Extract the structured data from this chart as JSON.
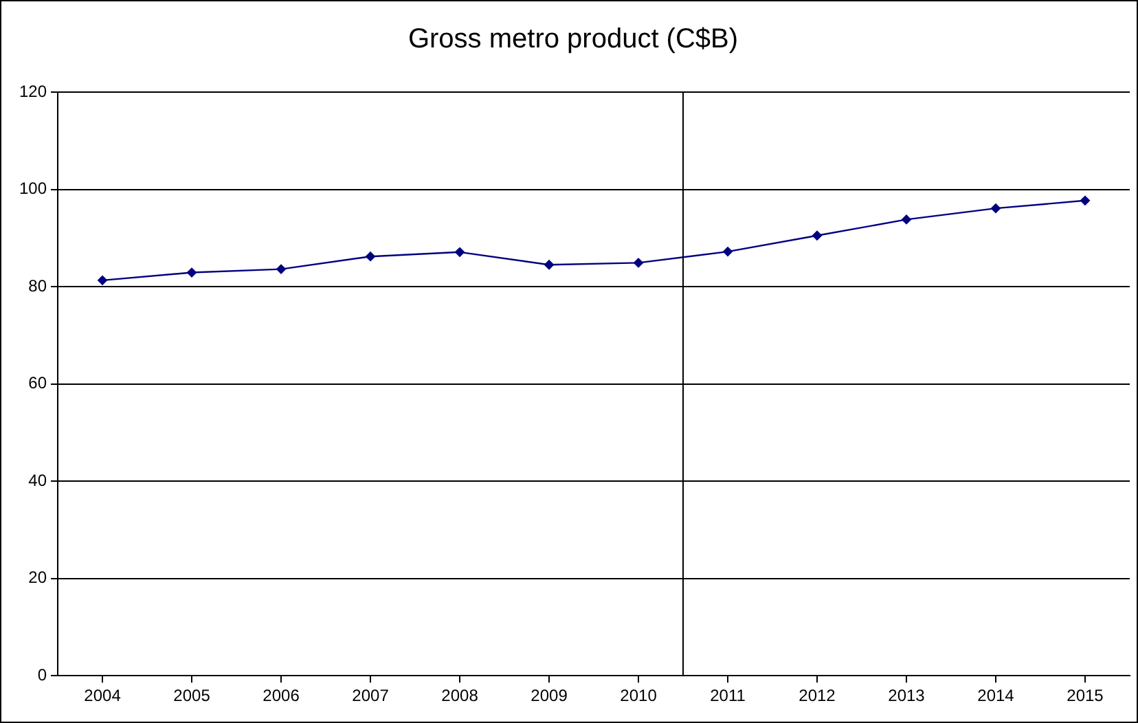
{
  "chart_data": {
    "type": "line",
    "title": "Gross metro product (C$B)",
    "x": [
      2004,
      2005,
      2006,
      2007,
      2008,
      2009,
      2010,
      2011,
      2012,
      2013,
      2014,
      2015
    ],
    "series": [
      {
        "color": "#000080",
        "values": [
          81.3,
          82.9,
          83.6,
          86.2,
          87.1,
          84.5,
          84.9,
          87.2,
          90.5,
          93.8,
          96.1,
          97.7
        ]
      }
    ],
    "xlim": [
      2003.5,
      2015.5
    ],
    "xticks": [
      2004,
      2005,
      2006,
      2007,
      2008,
      2009,
      2010,
      2011,
      2012,
      2013,
      2014,
      2015
    ],
    "ylim": [
      0,
      120
    ],
    "yticks": [
      0,
      20,
      40,
      60,
      80,
      100,
      120
    ],
    "ref_lines": [
      {
        "axis": "x",
        "value": 2010.5,
        "color": "#000000"
      }
    ],
    "grid": "y",
    "legend": false,
    "marker": "diamond",
    "line_style": "solid"
  }
}
